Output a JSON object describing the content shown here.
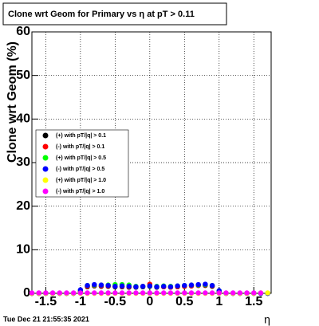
{
  "chart_data": {
    "type": "scatter",
    "title": "Clone wrt Geom for Primary vs  η at pT > 0.11",
    "y_label": "Clone wrt Geom (%)",
    "x_label": "η",
    "timestamp": "Tue Dec 21 21:55:35 2021",
    "xlim": [
      -1.7,
      1.75
    ],
    "ylim": [
      0,
      60
    ],
    "xticks": [
      -1.5,
      -1,
      -0.5,
      0,
      0.5,
      1,
      1.5
    ],
    "yticks": [
      0,
      10,
      20,
      30,
      40,
      50,
      60
    ],
    "grid": true,
    "x": [
      -1.7,
      -1.6,
      -1.5,
      -1.4,
      -1.3,
      -1.2,
      -1.1,
      -1.0,
      -0.9,
      -0.8,
      -0.7,
      -0.6,
      -0.5,
      -0.4,
      -0.3,
      -0.2,
      -0.1,
      0,
      0.1,
      0.2,
      0.3,
      0.4,
      0.5,
      0.6,
      0.7,
      0.8,
      0.9,
      1.0,
      1.1,
      1.2,
      1.3,
      1.4,
      1.5,
      1.6,
      1.7
    ],
    "series": [
      {
        "name": "(+) with pT/|q| > 0.1",
        "color": "#000000",
        "values": [
          0,
          0,
          0,
          0,
          0,
          0,
          0,
          0.5,
          1.5,
          1.7,
          1.6,
          1.6,
          1.5,
          1.5,
          1.4,
          1.4,
          1.5,
          1.6,
          1.4,
          1.5,
          1.4,
          1.5,
          1.6,
          1.7,
          1.8,
          1.8,
          1.6,
          0.5,
          0,
          0,
          0,
          0,
          0,
          0,
          0
        ]
      },
      {
        "name": "(-) with pT/|q| > 0.1",
        "color": "#ff0000",
        "values": [
          0,
          0,
          0,
          0,
          0,
          0,
          0,
          0.5,
          1.6,
          1.8,
          1.7,
          1.7,
          1.6,
          1.6,
          1.5,
          1.5,
          1.6,
          2.1,
          1.5,
          1.5,
          1.4,
          1.5,
          1.6,
          1.7,
          1.8,
          1.9,
          1.7,
          0.5,
          0,
          0,
          0,
          0,
          0,
          0,
          0
        ]
      },
      {
        "name": "(+) with pT/|q| > 0.5",
        "color": "#00ff00",
        "values": [
          0,
          0,
          0,
          0,
          0,
          0,
          0,
          0.7,
          1.8,
          1.9,
          1.9,
          1.9,
          2.0,
          2.0,
          1.9,
          1.6,
          1.6,
          1.7,
          1.6,
          1.7,
          1.6,
          1.7,
          1.8,
          1.9,
          1.9,
          2.0,
          1.8,
          0.6,
          0,
          0,
          0,
          0,
          0,
          0,
          0
        ]
      },
      {
        "name": "(-) with pT/|q| > 0.5",
        "color": "#0000ff",
        "values": [
          0,
          0,
          0,
          0,
          0,
          0,
          0,
          0.8,
          1.8,
          2.0,
          1.9,
          1.8,
          1.6,
          1.7,
          1.6,
          1.5,
          1.6,
          1.7,
          1.5,
          1.6,
          1.5,
          1.7,
          1.8,
          1.9,
          2.0,
          2.1,
          1.8,
          0.6,
          0,
          0,
          0,
          0,
          0,
          0,
          0
        ]
      },
      {
        "name": "(+) with pT/|q| > 1.0",
        "color": "#ffff00",
        "values": [
          0,
          0,
          0,
          0,
          0,
          0,
          0,
          0,
          0,
          0,
          0,
          0,
          0,
          0,
          0,
          0,
          0,
          0,
          0,
          0,
          0,
          0,
          0,
          0,
          0,
          0,
          0,
          0,
          0,
          0,
          0,
          0,
          0,
          0.1,
          0.1
        ]
      },
      {
        "name": "(-) with pT/|q| > 1.0",
        "color": "#ff00ff",
        "values": [
          0.1,
          0.1,
          0.1,
          0.1,
          0.1,
          0.1,
          0.1,
          0.1,
          0.1,
          0.1,
          0.1,
          0.1,
          0.1,
          0.1,
          0.1,
          0.1,
          0.1,
          0.1,
          0.1,
          0.1,
          0.1,
          0.1,
          0.1,
          0.1,
          0.1,
          0.1,
          0.1,
          0.1,
          0.1,
          0.1,
          0.1,
          0.1,
          0.1,
          0.1,
          null
        ]
      }
    ]
  }
}
